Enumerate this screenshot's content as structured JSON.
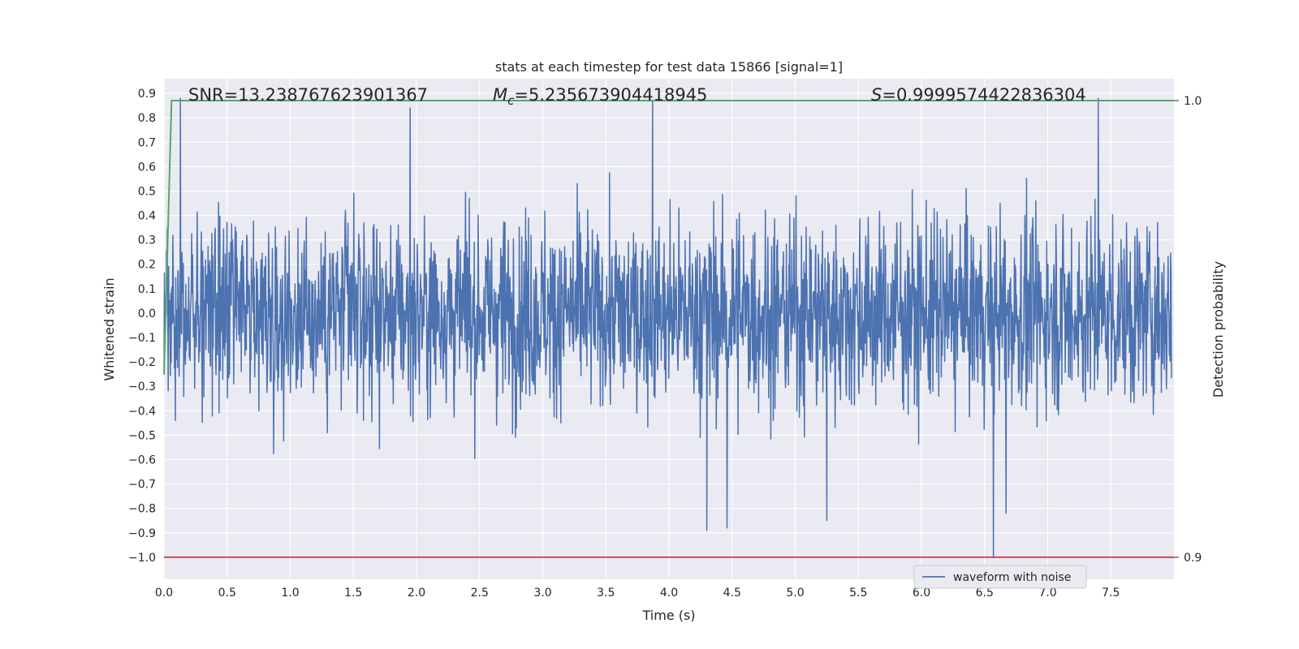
{
  "chart_data": {
    "type": "line",
    "title": "stats at each timestep for test data 15866 [signal=1]",
    "xlabel": "Time (s)",
    "ylabel": "Whitened strain",
    "y2label": "Detection probability",
    "xlim": [
      0.0,
      8.0
    ],
    "ylim": [
      -1.09,
      0.96
    ],
    "y2lim": [
      0.9,
      1.0
    ],
    "x_ticks": [
      "0.0",
      "0.5",
      "1.0",
      "1.5",
      "2.0",
      "2.5",
      "3.0",
      "3.5",
      "4.0",
      "4.5",
      "5.0",
      "5.5",
      "6.0",
      "6.5",
      "7.0",
      "7.5"
    ],
    "y_ticks": [
      "0.9",
      "0.8",
      "0.7",
      "0.6",
      "0.5",
      "0.4",
      "0.3",
      "0.2",
      "0.1",
      "0.0",
      "-0.1",
      "-0.2",
      "-0.3",
      "-0.4",
      "-0.5",
      "-0.6",
      "-0.7",
      "-0.8",
      "-0.9",
      "-1.0"
    ],
    "y2_ticks": [
      "1.0",
      "0.9"
    ],
    "grid": true,
    "legend_position": "bottom-right",
    "annotations": {
      "snr": "SNR=13.238767623901367",
      "mc_symbol": "M",
      "mc_sub": "c",
      "mc_value": "=5.235673904418945",
      "s_symbol": "S",
      "s_value": "=0.9999574422836304"
    },
    "series": [
      {
        "name": "waveform with noise",
        "color": "#4c72b0",
        "axis": "left",
        "amplitude_range": [
          -1.0,
          0.88
        ],
        "notable_peaks": [
          {
            "x": 0.13,
            "y": 0.88
          },
          {
            "x": 1.95,
            "y": 0.84
          },
          {
            "x": 3.87,
            "y": 0.87
          },
          {
            "x": 7.4,
            "y": 0.88
          },
          {
            "x": 4.3,
            "y": -0.89
          },
          {
            "x": 4.46,
            "y": -0.88
          },
          {
            "x": 5.25,
            "y": -0.85
          },
          {
            "x": 6.57,
            "y": -1.0
          },
          {
            "x": 6.67,
            "y": -0.82
          }
        ]
      },
      {
        "name": "",
        "color": "#55a868",
        "axis": "right",
        "x": [
          0.0,
          0.06,
          8.0
        ],
        "values": [
          0.94,
          1.0,
          1.0
        ]
      },
      {
        "name": "",
        "color": "#c44e52",
        "axis": "left",
        "x": [
          0.0,
          8.0
        ],
        "values": [
          -1.0,
          -1.0
        ]
      }
    ]
  }
}
